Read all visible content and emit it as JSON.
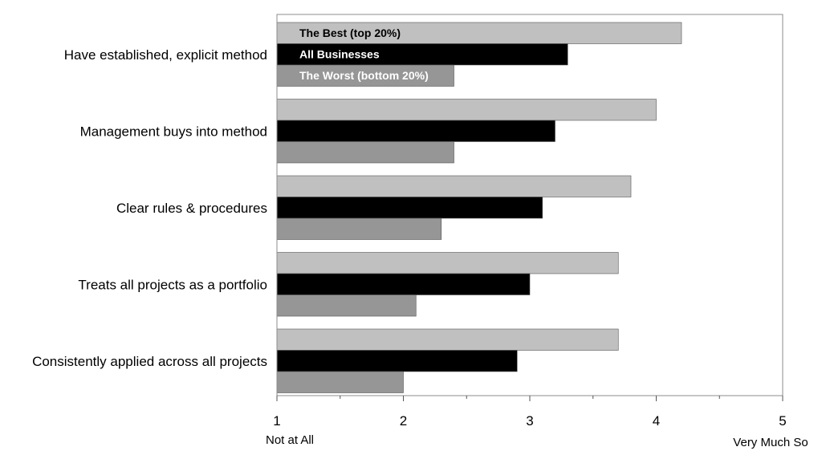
{
  "chart_data": {
    "type": "bar",
    "orientation": "horizontal",
    "categories": [
      "Have established, explicit method",
      "Management buys into method",
      "Clear rules & procedures",
      "Treats all projects as a portfolio",
      "Consistently applied across all projects"
    ],
    "series": [
      {
        "name": "The Best (top 20%)",
        "values": [
          4.2,
          4.0,
          3.8,
          3.7,
          3.7
        ],
        "color": "#c0c0c0",
        "label_color": "#000000"
      },
      {
        "name": "All Businesses",
        "values": [
          3.3,
          3.2,
          3.1,
          3.0,
          2.9
        ],
        "color": "#000000",
        "label_color": "#ffffff"
      },
      {
        "name": "The Worst (bottom 20%)",
        "values": [
          2.4,
          2.4,
          2.3,
          2.1,
          2.0
        ],
        "color": "#969696",
        "label_color": "#ffffff"
      }
    ],
    "xlim": [
      1,
      5
    ],
    "xticks": [
      "1",
      "2",
      "3",
      "4",
      "5"
    ],
    "x_low_label": "Not at All",
    "x_high_label": "Very Much So",
    "legend": "inline-on-first-category",
    "grid": false
  }
}
